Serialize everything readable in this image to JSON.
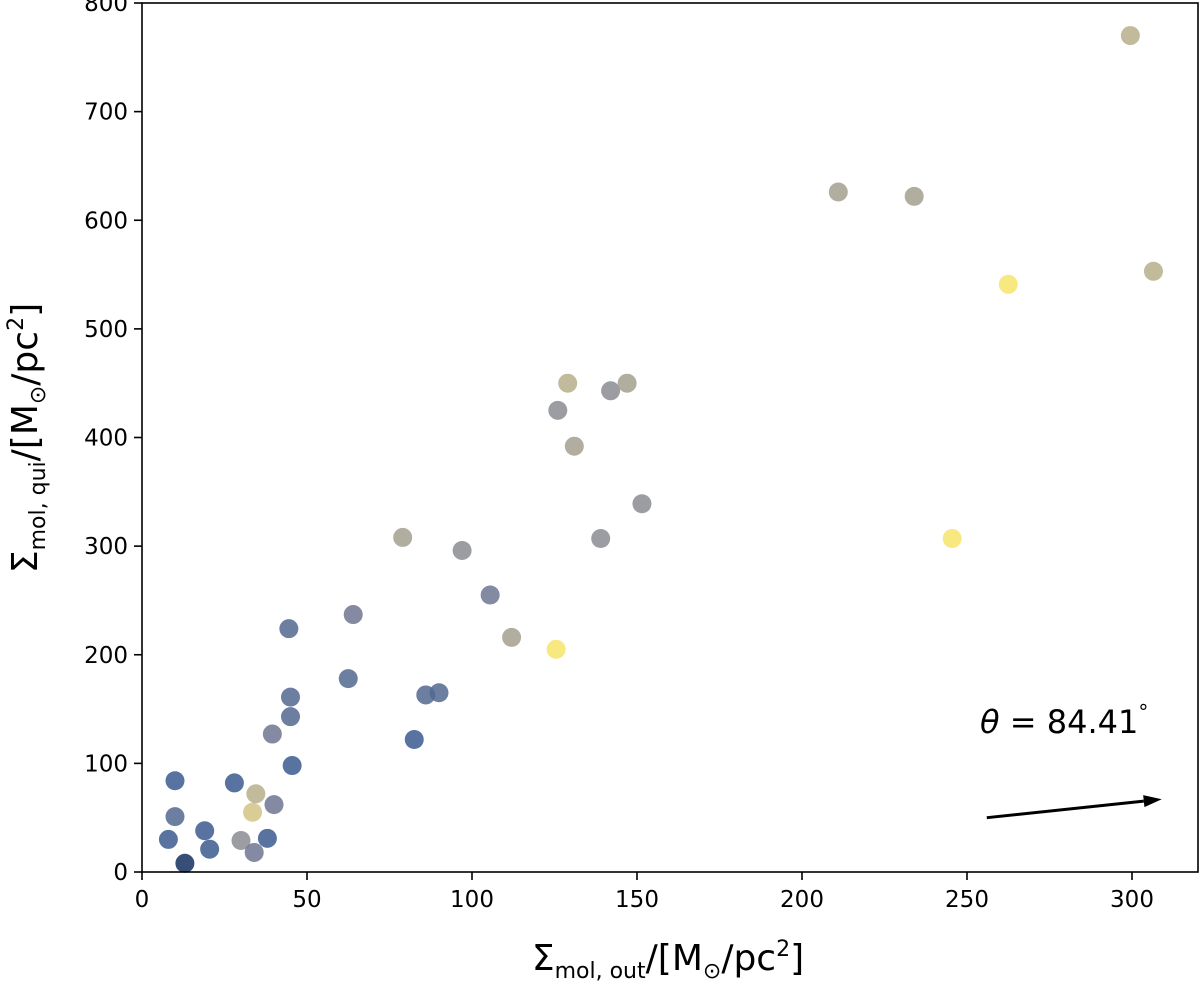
{
  "chart_data": {
    "type": "scatter",
    "title": "",
    "xlabel": {
      "base": "Σ",
      "sub": "mol, out",
      "unit_prefix": "/[M",
      "unit_odot": "⊙",
      "unit_mid": "/pc",
      "unit_sup": "2",
      "unit_suffix": "]"
    },
    "ylabel": {
      "base": "Σ",
      "sub": "mol, qui",
      "unit_prefix": "/[M",
      "unit_odot": "⊙",
      "unit_mid": "/pc",
      "unit_sup": "2",
      "unit_suffix": "]"
    },
    "xlim": [
      0,
      320
    ],
    "ylim": [
      0,
      800
    ],
    "xticks": [
      0,
      50,
      100,
      150,
      200,
      250,
      300
    ],
    "yticks": [
      0,
      100,
      200,
      300,
      400,
      500,
      600,
      700,
      800
    ],
    "grid": false,
    "annotation": {
      "theta_symbol": "θ",
      "text": " = 84.41",
      "degree": "°"
    },
    "arrow": {
      "angle_deg": 84.41,
      "from": [
        256,
        50
      ],
      "to": [
        309,
        67
      ]
    },
    "colors": {
      "dark_navy": "#14305e",
      "navy": "#3b5a8e",
      "blue_gray": "#52688f",
      "slate": "#6d7690",
      "gray": "#8a8c92",
      "warm_gray": "#a3a08f",
      "khaki": "#b6ae8a",
      "sand": "#d2c482",
      "yellow": "#f6e46a"
    },
    "points": [
      {
        "x": 8,
        "y": 30,
        "c": "navy"
      },
      {
        "x": 10,
        "y": 84,
        "c": "navy"
      },
      {
        "x": 10,
        "y": 51,
        "c": "blue_gray"
      },
      {
        "x": 13,
        "y": 8,
        "c": "dark_navy"
      },
      {
        "x": 19,
        "y": 38,
        "c": "navy"
      },
      {
        "x": 20.5,
        "y": 21,
        "c": "navy"
      },
      {
        "x": 28,
        "y": 82,
        "c": "navy"
      },
      {
        "x": 30,
        "y": 29,
        "c": "gray"
      },
      {
        "x": 33.5,
        "y": 55,
        "c": "sand"
      },
      {
        "x": 34,
        "y": 18,
        "c": "slate"
      },
      {
        "x": 34.5,
        "y": 72,
        "c": "khaki"
      },
      {
        "x": 38,
        "y": 31,
        "c": "navy"
      },
      {
        "x": 39.5,
        "y": 127,
        "c": "slate"
      },
      {
        "x": 40,
        "y": 62,
        "c": "slate"
      },
      {
        "x": 44.5,
        "y": 224,
        "c": "blue_gray"
      },
      {
        "x": 45,
        "y": 143,
        "c": "blue_gray"
      },
      {
        "x": 45,
        "y": 161,
        "c": "blue_gray"
      },
      {
        "x": 45.5,
        "y": 98,
        "c": "navy"
      },
      {
        "x": 62.5,
        "y": 178,
        "c": "blue_gray"
      },
      {
        "x": 64,
        "y": 237,
        "c": "slate"
      },
      {
        "x": 79,
        "y": 308,
        "c": "warm_gray"
      },
      {
        "x": 82.5,
        "y": 122,
        "c": "navy"
      },
      {
        "x": 86,
        "y": 163,
        "c": "blue_gray"
      },
      {
        "x": 90,
        "y": 165,
        "c": "blue_gray"
      },
      {
        "x": 97,
        "y": 296,
        "c": "gray"
      },
      {
        "x": 105.5,
        "y": 255,
        "c": "slate"
      },
      {
        "x": 112,
        "y": 216,
        "c": "warm_gray"
      },
      {
        "x": 125.5,
        "y": 205,
        "c": "yellow"
      },
      {
        "x": 126,
        "y": 425,
        "c": "gray"
      },
      {
        "x": 129,
        "y": 450,
        "c": "khaki"
      },
      {
        "x": 131,
        "y": 392,
        "c": "warm_gray"
      },
      {
        "x": 139,
        "y": 307,
        "c": "gray"
      },
      {
        "x": 142,
        "y": 443,
        "c": "gray"
      },
      {
        "x": 147,
        "y": 450,
        "c": "warm_gray"
      },
      {
        "x": 151.5,
        "y": 339,
        "c": "gray"
      },
      {
        "x": 211,
        "y": 626,
        "c": "warm_gray"
      },
      {
        "x": 234,
        "y": 622,
        "c": "warm_gray"
      },
      {
        "x": 245.5,
        "y": 307,
        "c": "yellow"
      },
      {
        "x": 262.5,
        "y": 541,
        "c": "yellow"
      },
      {
        "x": 299.5,
        "y": 770,
        "c": "khaki"
      },
      {
        "x": 306.5,
        "y": 553,
        "c": "khaki"
      }
    ]
  }
}
